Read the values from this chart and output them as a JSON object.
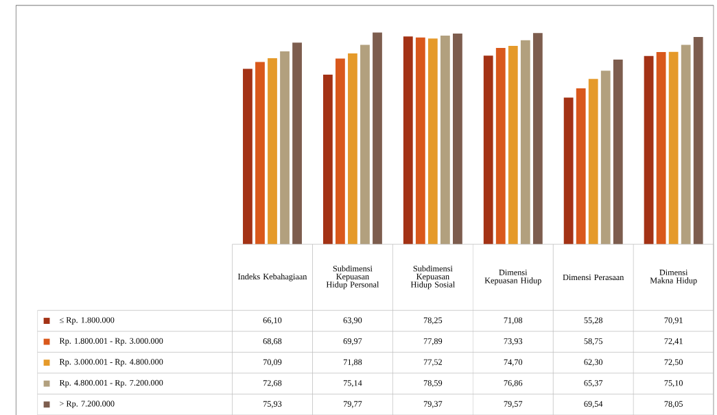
{
  "chart_data": {
    "type": "bar",
    "categories": [
      "Indeks Kebahagiaan",
      "Subdimensi Kepuasan Hidup Personal",
      "Subdimensi Kepuasan Hidup Sosial",
      "Dimensi Kepuasan Hidup",
      "Dimensi Perasaan",
      "Dimensi Makna Hidup"
    ],
    "series": [
      {
        "name": "≤ Rp. 1.800.000",
        "color": "#a33215",
        "values": [
          66.1,
          63.9,
          78.25,
          71.08,
          55.28,
          70.91
        ],
        "value_labels": [
          "66,10",
          "63,90",
          "78,25",
          "71,08",
          "55,28",
          "70,91"
        ]
      },
      {
        "name": "Rp. 1.800.001 - Rp. 3.000.000",
        "color": "#d9581b",
        "values": [
          68.68,
          69.97,
          77.89,
          73.93,
          58.75,
          72.41
        ],
        "value_labels": [
          "68,68",
          "69,97",
          "77,89",
          "73,93",
          "58,75",
          "72,41"
        ]
      },
      {
        "name": "Rp. 3.000.001 - Rp. 4.800.000",
        "color": "#e59a2a",
        "values": [
          70.09,
          71.88,
          77.52,
          74.7,
          62.3,
          72.5
        ],
        "value_labels": [
          "70,09",
          "71,88",
          "77,52",
          "74,70",
          "62,30",
          "72,50"
        ]
      },
      {
        "name": "Rp. 4.800.001 - Rp. 7.200.000",
        "color": "#b2a07e",
        "values": [
          72.68,
          75.14,
          78.59,
          76.86,
          65.37,
          75.1
        ],
        "value_labels": [
          "72,68",
          "75,14",
          "78,59",
          "76,86",
          "65,37",
          "75,10"
        ]
      },
      {
        "name": "> Rp. 7.200.000",
        "color": "#7d5d4e",
        "values": [
          75.93,
          79.77,
          79.37,
          79.57,
          69.54,
          78.05
        ],
        "value_labels": [
          "75,93",
          "79,77",
          "79,37",
          "79,57",
          "69,54",
          "78,05"
        ]
      }
    ],
    "legend": "bottom"
  }
}
